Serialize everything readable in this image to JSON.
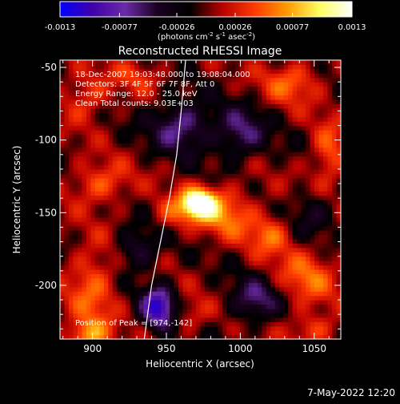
{
  "chart_data": {
    "type": "heatmap",
    "title": "Reconstructed RHESSI Image",
    "xlabel": "Heliocentric X (arcsec)",
    "ylabel": "Heliocentric Y (arcsec)",
    "xlim": [
      878,
      1068
    ],
    "ylim": [
      -237,
      -45
    ],
    "x_ticks": [
      900,
      950,
      1000,
      1050
    ],
    "y_ticks": [
      -50,
      -100,
      -150,
      -200
    ],
    "colorbar": {
      "min": -0.0013,
      "max": 0.0013,
      "ticks": [
        "-0.0013",
        "-0.00077",
        "-0.00026",
        "0.00026",
        "0.00077",
        "0.0013"
      ],
      "tick_values": [
        -0.0013,
        -0.00077,
        -0.00026,
        0.00026,
        0.00077,
        0.0013
      ],
      "units_main": "(photons cm",
      "units_sup1": "-2",
      "units_s": " s",
      "units_sup2": "-1",
      "units_asec": " asec",
      "units_sup3": "-2",
      "units_close": ")",
      "colors": [
        "#0000ff",
        "#3f00aa",
        "#6a2ba8",
        "#1a0020",
        "#000000",
        "#b80000",
        "#ff3a00",
        "#ff9a00",
        "#ffff60",
        "#ffffff"
      ]
    },
    "info_lines": [
      "18-Dec-2007 19:03:48.000 to 19:08:04.000",
      "Detectors: 3F 4F 5F 6F 7F 8F, Att 0",
      "Energy Range: 12.0 - 25.0 keV",
      "Clean     Total counts: 9.03E+03"
    ],
    "peak_label": "Position of Peak = [974,-142]",
    "peak": [
      974,
      -142
    ],
    "limb_points": [
      [
        963,
        -45
      ],
      [
        960,
        -80
      ],
      [
        957,
        -110
      ],
      [
        952,
        -140
      ],
      [
        946,
        -170
      ],
      [
        940,
        -200
      ],
      [
        935,
        -237
      ]
    ],
    "sources": [
      {
        "x": 972,
        "y": -143,
        "sx": 8,
        "sy": 7,
        "amp": 0.0014
      },
      {
        "x": 990,
        "y": -150,
        "sx": 14,
        "sy": 12,
        "amp": 0.0006
      },
      {
        "x": 955,
        "y": -150,
        "sx": 10,
        "sy": 8,
        "amp": 0.0004
      },
      {
        "x": 1020,
        "y": -165,
        "sx": 10,
        "sy": 10,
        "amp": 0.0005
      },
      {
        "x": 905,
        "y": -130,
        "sx": 14,
        "sy": 10,
        "amp": 0.0005
      },
      {
        "x": 900,
        "y": -200,
        "sx": 12,
        "sy": 20,
        "amp": 0.0005
      },
      {
        "x": 897,
        "y": -235,
        "sx": 10,
        "sy": 8,
        "amp": 0.0007
      },
      {
        "x": 1045,
        "y": -195,
        "sx": 14,
        "sy": 14,
        "amp": 0.0005
      },
      {
        "x": 1050,
        "y": -230,
        "sx": 12,
        "sy": 8,
        "amp": 0.0004
      },
      {
        "x": 1035,
        "y": -60,
        "sx": 14,
        "sy": 10,
        "amp": 0.0005
      },
      {
        "x": 1060,
        "y": -110,
        "sx": 8,
        "sy": 16,
        "amp": 0.0005
      },
      {
        "x": 895,
        "y": -70,
        "sx": 12,
        "sy": 12,
        "amp": 0.0004
      },
      {
        "x": 930,
        "y": -55,
        "sx": 12,
        "sy": 8,
        "amp": 0.0003
      },
      {
        "x": 965,
        "y": -220,
        "sx": 10,
        "sy": 8,
        "amp": 0.0003
      },
      {
        "x": 945,
        "y": -215,
        "sx": 8,
        "sy": 10,
        "amp": -0.0011
      },
      {
        "x": 960,
        "y": -90,
        "sx": 14,
        "sy": 12,
        "amp": -0.0007
      },
      {
        "x": 1000,
        "y": -95,
        "sx": 12,
        "sy": 12,
        "amp": -0.0006
      },
      {
        "x": 1010,
        "y": -210,
        "sx": 12,
        "sy": 10,
        "amp": -0.0006
      },
      {
        "x": 930,
        "y": -175,
        "sx": 10,
        "sy": 10,
        "amp": -0.0005
      },
      {
        "x": 1050,
        "y": -150,
        "sx": 10,
        "sy": 10,
        "amp": -0.0004
      }
    ]
  },
  "footer": {
    "timestamp": "7-May-2022 12:20"
  }
}
